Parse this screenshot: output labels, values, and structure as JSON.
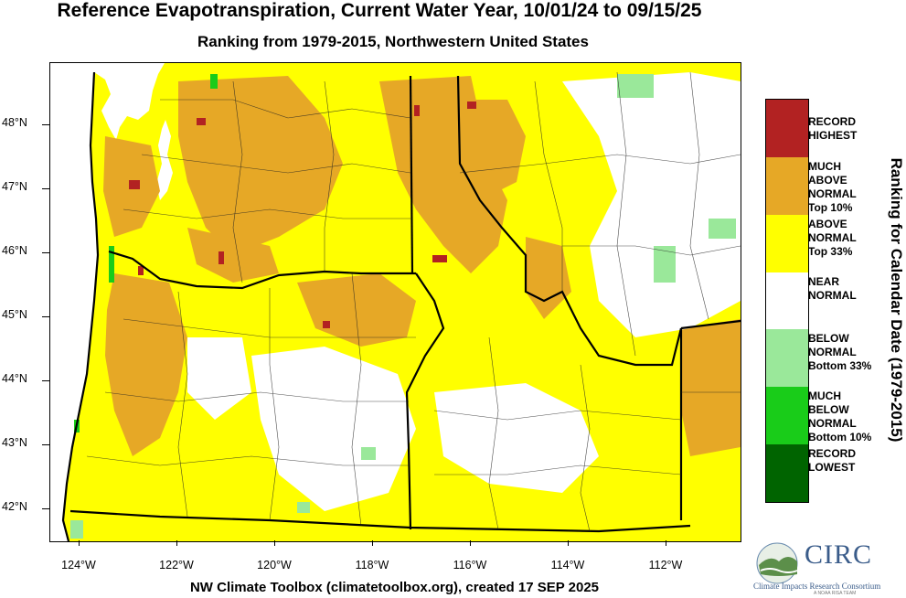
{
  "header": {
    "title": "Reference Evapotranspiration, Current Water Year, 10/01/24 to 09/15/25",
    "subtitle": "Ranking from 1979-2015, Northwestern United States"
  },
  "map": {
    "lat_labels": [
      "48°N",
      "47°N",
      "46°N",
      "45°N",
      "44°N",
      "43°N",
      "42°N"
    ],
    "lon_labels": [
      "124°W",
      "122°W",
      "120°W",
      "118°W",
      "116°W",
      "114°W",
      "112°W"
    ],
    "lat_range": [
      41.6,
      48.9
    ],
    "lon_range": [
      124.6,
      110.4
    ],
    "colors": {
      "record_highest": "#b22222",
      "much_above": "#e6a826",
      "above": "#ffff00",
      "near": "#ffffff",
      "below": "#9ae89a",
      "much_below": "#19cc19",
      "record_lowest": "#006400",
      "ocean": "#ffffff"
    }
  },
  "legend": {
    "axis_label": "Ranking for Calendar Date (1979-2015)",
    "items": [
      {
        "lines": [
          "RECORD",
          "HIGHEST"
        ],
        "color": "#b22222"
      },
      {
        "lines": [
          "MUCH",
          "ABOVE",
          "NORMAL",
          "Top 10%"
        ],
        "color": "#e6a826"
      },
      {
        "lines": [
          "ABOVE",
          "NORMAL",
          "Top 33%"
        ],
        "color": "#ffff00"
      },
      {
        "lines": [
          "NEAR",
          "NORMAL"
        ],
        "color": "#ffffff"
      },
      {
        "lines": [
          "BELOW",
          "NORMAL",
          "Bottom 33%"
        ],
        "color": "#9ae89a"
      },
      {
        "lines": [
          "MUCH",
          "BELOW",
          "NORMAL",
          "Bottom 10%"
        ],
        "color": "#19cc19"
      },
      {
        "lines": [
          "RECORD",
          "LOWEST"
        ],
        "color": "#006400"
      }
    ]
  },
  "footer": {
    "credit": "NW Climate Toolbox (climatetoolbox.org), created 17 SEP 2025"
  },
  "logo": {
    "name": "CIRC",
    "subtitle": "Climate Impacts Research Consortium",
    "tagline": "A NOAA RISA TEAM"
  }
}
